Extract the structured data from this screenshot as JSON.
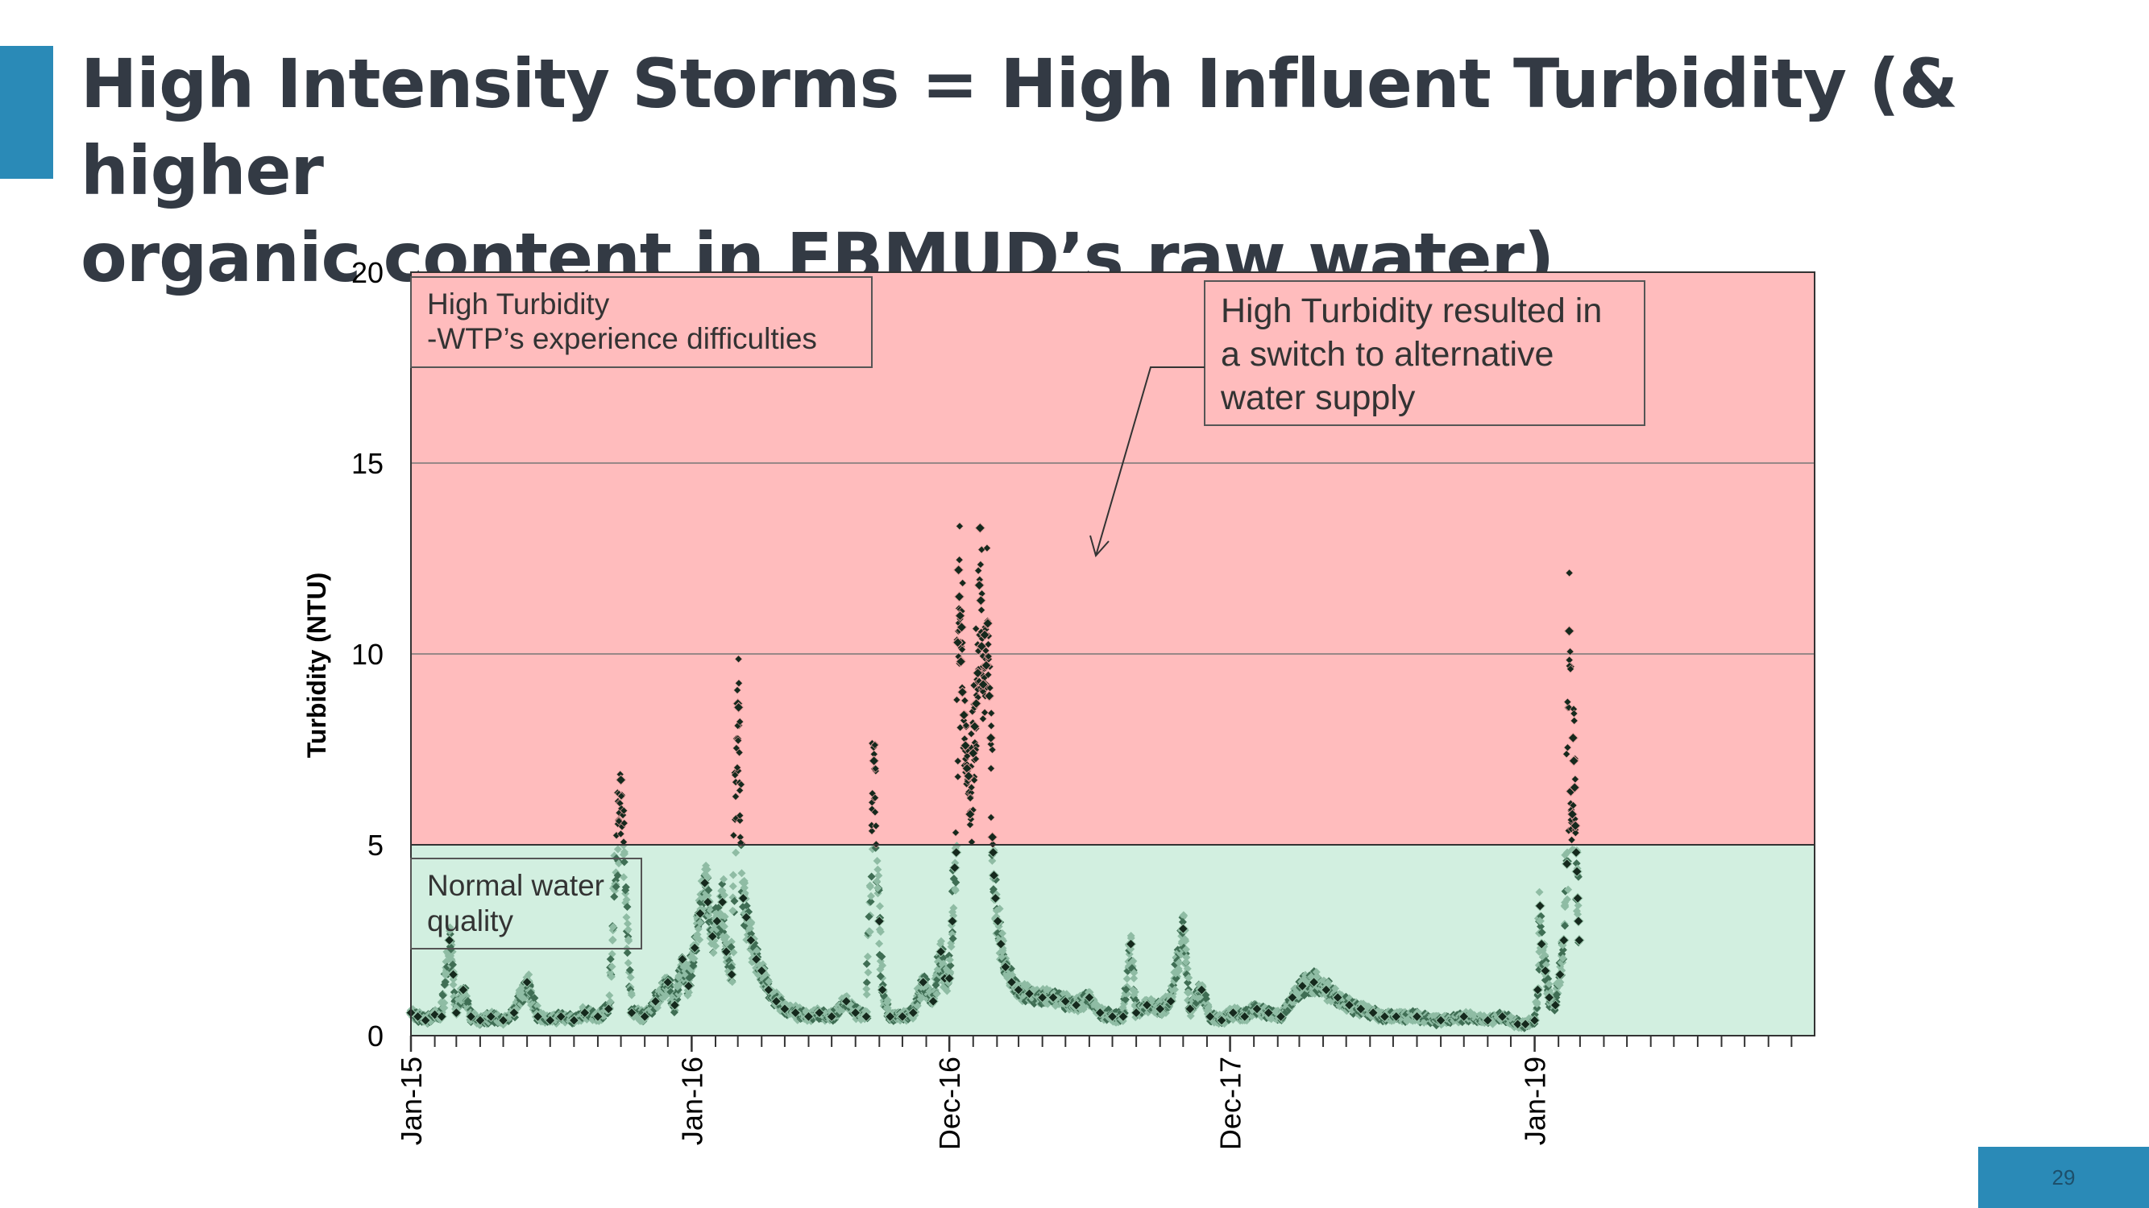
{
  "slide": {
    "title_line1": "High Intensity Storms = High Influent Turbidity (& higher",
    "title_line2": "organic content in EBMUD’s raw water)",
    "page_number": "29",
    "accent_color": "#2a8ab7"
  },
  "chart_data": {
    "type": "scatter",
    "title": "",
    "xlabel": "",
    "ylabel": "Turbidity (NTU)",
    "ylim": [
      0,
      20
    ],
    "yticks": [
      0,
      5,
      10,
      15,
      20
    ],
    "xlim": [
      "2015-01-01",
      "2019-12-31"
    ],
    "xtick_labels": [
      {
        "date": "2015-01-01",
        "label": "Jan-15"
      },
      {
        "date": "2016-01-01",
        "label": "Jan-16"
      },
      {
        "date": "2016-12-01",
        "label": "Dec-16"
      },
      {
        "date": "2017-12-01",
        "label": "Dec-17"
      },
      {
        "date": "2019-01-01",
        "label": "Jan-19"
      }
    ],
    "grid": true,
    "zones": [
      {
        "name": "high",
        "y_from": 5,
        "y_to": 20,
        "color": "#ffbcbd"
      },
      {
        "name": "normal",
        "y_from": 0,
        "y_to": 5,
        "color": "#d2efe0"
      }
    ],
    "annotations": {
      "high_turbidity": [
        "High Turbidity",
        "-WTP’s experience difficulties"
      ],
      "normal_quality": [
        "Normal water",
        "quality"
      ],
      "switch_callout": [
        "High Turbidity resulted in",
        "a switch to alternative",
        "water supply"
      ]
    },
    "series": [
      {
        "name": "Influent turbidity",
        "colors": {
          "light": "#8fbca4",
          "mid": "#3f6e54",
          "dark": "#15291d"
        },
        "points": [
          [
            "2015-01-01",
            0.6
          ],
          [
            "2015-01-10",
            0.5
          ],
          [
            "2015-01-20",
            0.4
          ],
          [
            "2015-02-01",
            0.55
          ],
          [
            "2015-02-10",
            0.5
          ],
          [
            "2015-02-20",
            2.5
          ],
          [
            "2015-02-25",
            1.6
          ],
          [
            "2015-03-01",
            0.6
          ],
          [
            "2015-03-10",
            1.2
          ],
          [
            "2015-03-20",
            0.5
          ],
          [
            "2015-04-01",
            0.4
          ],
          [
            "2015-04-15",
            0.5
          ],
          [
            "2015-05-01",
            0.4
          ],
          [
            "2015-05-15",
            0.6
          ],
          [
            "2015-06-01",
            1.4
          ],
          [
            "2015-06-15",
            0.5
          ],
          [
            "2015-07-01",
            0.4
          ],
          [
            "2015-07-15",
            0.5
          ],
          [
            "2015-08-01",
            0.4
          ],
          [
            "2015-08-15",
            0.6
          ],
          [
            "2015-09-01",
            0.5
          ],
          [
            "2015-09-15",
            0.7
          ],
          [
            "2015-10-01",
            6.7
          ],
          [
            "2015-10-15",
            0.6
          ],
          [
            "2015-11-01",
            0.5
          ],
          [
            "2015-11-15",
            0.9
          ],
          [
            "2015-12-01",
            1.4
          ],
          [
            "2015-12-10",
            0.8
          ],
          [
            "2015-12-20",
            2.0
          ],
          [
            "2015-12-28",
            1.3
          ],
          [
            "2016-01-05",
            2.3
          ],
          [
            "2016-01-12",
            3.2
          ],
          [
            "2016-01-18",
            4.0
          ],
          [
            "2016-01-22",
            3.5
          ],
          [
            "2016-01-28",
            2.6
          ],
          [
            "2016-02-03",
            3.0
          ],
          [
            "2016-02-10",
            3.5
          ],
          [
            "2016-02-15",
            2.2
          ],
          [
            "2016-02-22",
            1.6
          ],
          [
            "2016-03-01",
            8.7
          ],
          [
            "2016-03-02",
            8.6
          ],
          [
            "2016-03-08",
            3.6
          ],
          [
            "2016-03-12",
            3.1
          ],
          [
            "2016-03-18",
            2.5
          ],
          [
            "2016-03-25",
            2.0
          ],
          [
            "2016-04-01",
            1.7
          ],
          [
            "2016-04-10",
            1.2
          ],
          [
            "2016-04-20",
            0.9
          ],
          [
            "2016-05-01",
            0.7
          ],
          [
            "2016-05-15",
            0.6
          ],
          [
            "2016-06-01",
            0.5
          ],
          [
            "2016-06-15",
            0.6
          ],
          [
            "2016-07-01",
            0.5
          ],
          [
            "2016-07-20",
            0.9
          ],
          [
            "2016-08-01",
            0.6
          ],
          [
            "2016-08-15",
            0.5
          ],
          [
            "2016-08-25",
            7.2
          ],
          [
            "2016-09-01",
            3.0
          ],
          [
            "2016-09-05",
            1.2
          ],
          [
            "2016-09-15",
            0.5
          ],
          [
            "2016-10-01",
            0.5
          ],
          [
            "2016-10-15",
            0.6
          ],
          [
            "2016-10-28",
            1.4
          ],
          [
            "2016-11-10",
            0.9
          ],
          [
            "2016-11-20",
            2.2
          ],
          [
            "2016-11-25",
            1.5
          ],
          [
            "2016-12-01",
            1.5
          ],
          [
            "2016-12-05",
            3.0
          ],
          [
            "2016-12-08",
            4.4
          ],
          [
            "2016-12-10",
            4.8
          ],
          [
            "2016-12-12",
            10.3
          ],
          [
            "2016-12-13",
            12.2
          ],
          [
            "2016-12-14",
            11.5
          ],
          [
            "2016-12-15",
            11.0
          ],
          [
            "2016-12-16",
            9.8
          ],
          [
            "2016-12-17",
            10.7
          ],
          [
            "2016-12-18",
            9.0
          ],
          [
            "2016-12-20",
            8.4
          ],
          [
            "2016-12-22",
            7.6
          ],
          [
            "2016-12-24",
            7.0
          ],
          [
            "2016-12-26",
            6.8
          ],
          [
            "2016-12-28",
            5.8
          ],
          [
            "2017-01-01",
            7.4
          ],
          [
            "2017-01-03",
            8.1
          ],
          [
            "2017-01-05",
            8.7
          ],
          [
            "2017-01-07",
            9.5
          ],
          [
            "2017-01-09",
            11.8
          ],
          [
            "2017-01-10",
            13.3
          ],
          [
            "2017-01-11",
            11.4
          ],
          [
            "2017-01-12",
            10.2
          ],
          [
            "2017-01-14",
            9.2
          ],
          [
            "2017-01-16",
            10.5
          ],
          [
            "2017-01-18",
            9.7
          ],
          [
            "2017-01-20",
            10.8
          ],
          [
            "2017-01-22",
            8.9
          ],
          [
            "2017-01-24",
            7.8
          ],
          [
            "2017-01-26",
            5.2
          ],
          [
            "2017-01-27",
            4.8
          ],
          [
            "2017-01-28",
            4.2
          ],
          [
            "2017-01-30",
            3.6
          ],
          [
            "2017-02-02",
            3.0
          ],
          [
            "2017-02-06",
            2.4
          ],
          [
            "2017-02-12",
            1.8
          ],
          [
            "2017-02-20",
            1.4
          ],
          [
            "2017-03-01",
            1.2
          ],
          [
            "2017-03-15",
            1.1
          ],
          [
            "2017-04-01",
            1.0
          ],
          [
            "2017-04-15",
            1.0
          ],
          [
            "2017-05-01",
            0.9
          ],
          [
            "2017-05-15",
            0.8
          ],
          [
            "2017-06-01",
            1.0
          ],
          [
            "2017-06-15",
            0.6
          ],
          [
            "2017-07-01",
            0.5
          ],
          [
            "2017-07-15",
            0.5
          ],
          [
            "2017-07-25",
            2.4
          ],
          [
            "2017-08-01",
            0.6
          ],
          [
            "2017-08-15",
            0.8
          ],
          [
            "2017-09-01",
            0.7
          ],
          [
            "2017-09-15",
            0.9
          ],
          [
            "2017-10-01",
            2.8
          ],
          [
            "2017-10-10",
            0.7
          ],
          [
            "2017-10-25",
            1.2
          ],
          [
            "2017-11-05",
            0.5
          ],
          [
            "2017-11-20",
            0.4
          ],
          [
            "2017-12-05",
            0.6
          ],
          [
            "2017-12-20",
            0.5
          ],
          [
            "2018-01-05",
            0.7
          ],
          [
            "2018-01-20",
            0.6
          ],
          [
            "2018-02-05",
            0.5
          ],
          [
            "2018-02-20",
            1.0
          ],
          [
            "2018-03-05",
            1.3
          ],
          [
            "2018-03-20",
            1.4
          ],
          [
            "2018-04-05",
            1.2
          ],
          [
            "2018-04-20",
            1.0
          ],
          [
            "2018-05-05",
            0.8
          ],
          [
            "2018-05-20",
            0.7
          ],
          [
            "2018-06-05",
            0.6
          ],
          [
            "2018-06-20",
            0.5
          ],
          [
            "2018-07-05",
            0.5
          ],
          [
            "2018-08-01",
            0.5
          ],
          [
            "2018-09-01",
            0.4
          ],
          [
            "2018-10-01",
            0.5
          ],
          [
            "2018-11-01",
            0.4
          ],
          [
            "2018-11-20",
            0.5
          ],
          [
            "2018-12-10",
            0.3
          ],
          [
            "2018-12-20",
            0.3
          ],
          [
            "2019-01-01",
            0.4
          ],
          [
            "2019-01-05",
            1.2
          ],
          [
            "2019-01-08",
            3.4
          ],
          [
            "2019-01-10",
            2.4
          ],
          [
            "2019-01-15",
            1.7
          ],
          [
            "2019-01-20",
            1.0
          ],
          [
            "2019-01-28",
            0.8
          ],
          [
            "2019-02-03",
            1.6
          ],
          [
            "2019-02-08",
            2.5
          ],
          [
            "2019-02-12",
            4.5
          ],
          [
            "2019-02-15",
            10.6
          ],
          [
            "2019-02-17",
            6.4
          ],
          [
            "2019-02-19",
            5.8
          ],
          [
            "2019-02-20",
            7.8
          ],
          [
            "2019-02-21",
            7.2
          ],
          [
            "2019-02-22",
            6.5
          ],
          [
            "2019-02-23",
            5.5
          ],
          [
            "2019-02-24",
            4.8
          ],
          [
            "2019-02-25",
            4.3
          ],
          [
            "2019-02-26",
            3.6
          ],
          [
            "2019-02-27",
            3.0
          ],
          [
            "2019-02-28",
            2.5
          ]
        ]
      }
    ]
  }
}
